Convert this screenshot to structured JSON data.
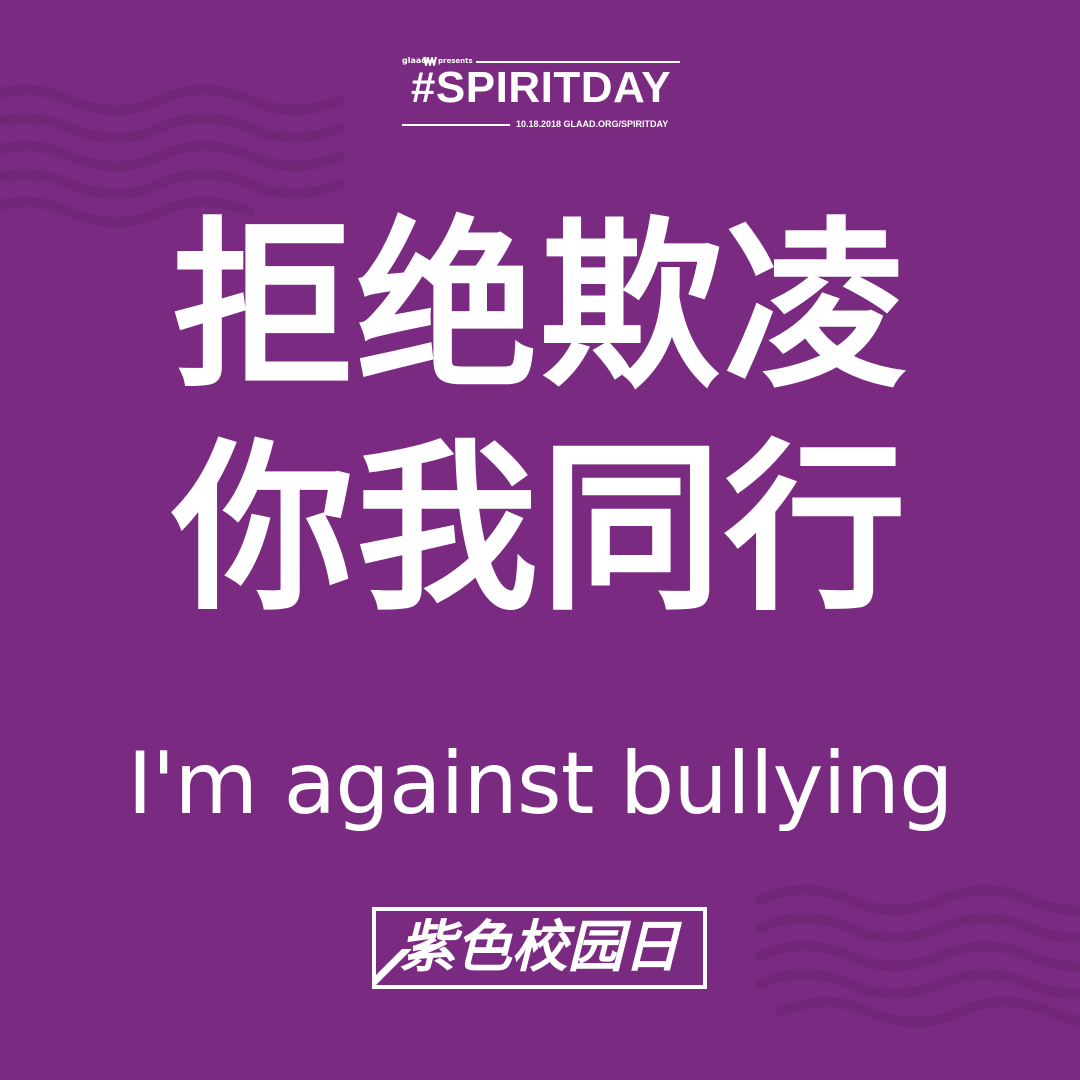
{
  "header": {
    "org_name": "glaad",
    "presents": "presents",
    "hashtag_title": "#SPIRITDAY",
    "event_line": "10.18.2018 GLAAD.ORG/SPIRITDAY"
  },
  "headline": {
    "line_1": "拒绝欺凌",
    "line_2": "你我同行"
  },
  "tagline": "I'm against bullying",
  "badge": {
    "label": "紫色校园日"
  },
  "colors": {
    "background": "#7b2a81",
    "wave": "#6e2573",
    "text": "#ffffff"
  },
  "icons": {
    "logo": "glaad-logo-icon"
  }
}
